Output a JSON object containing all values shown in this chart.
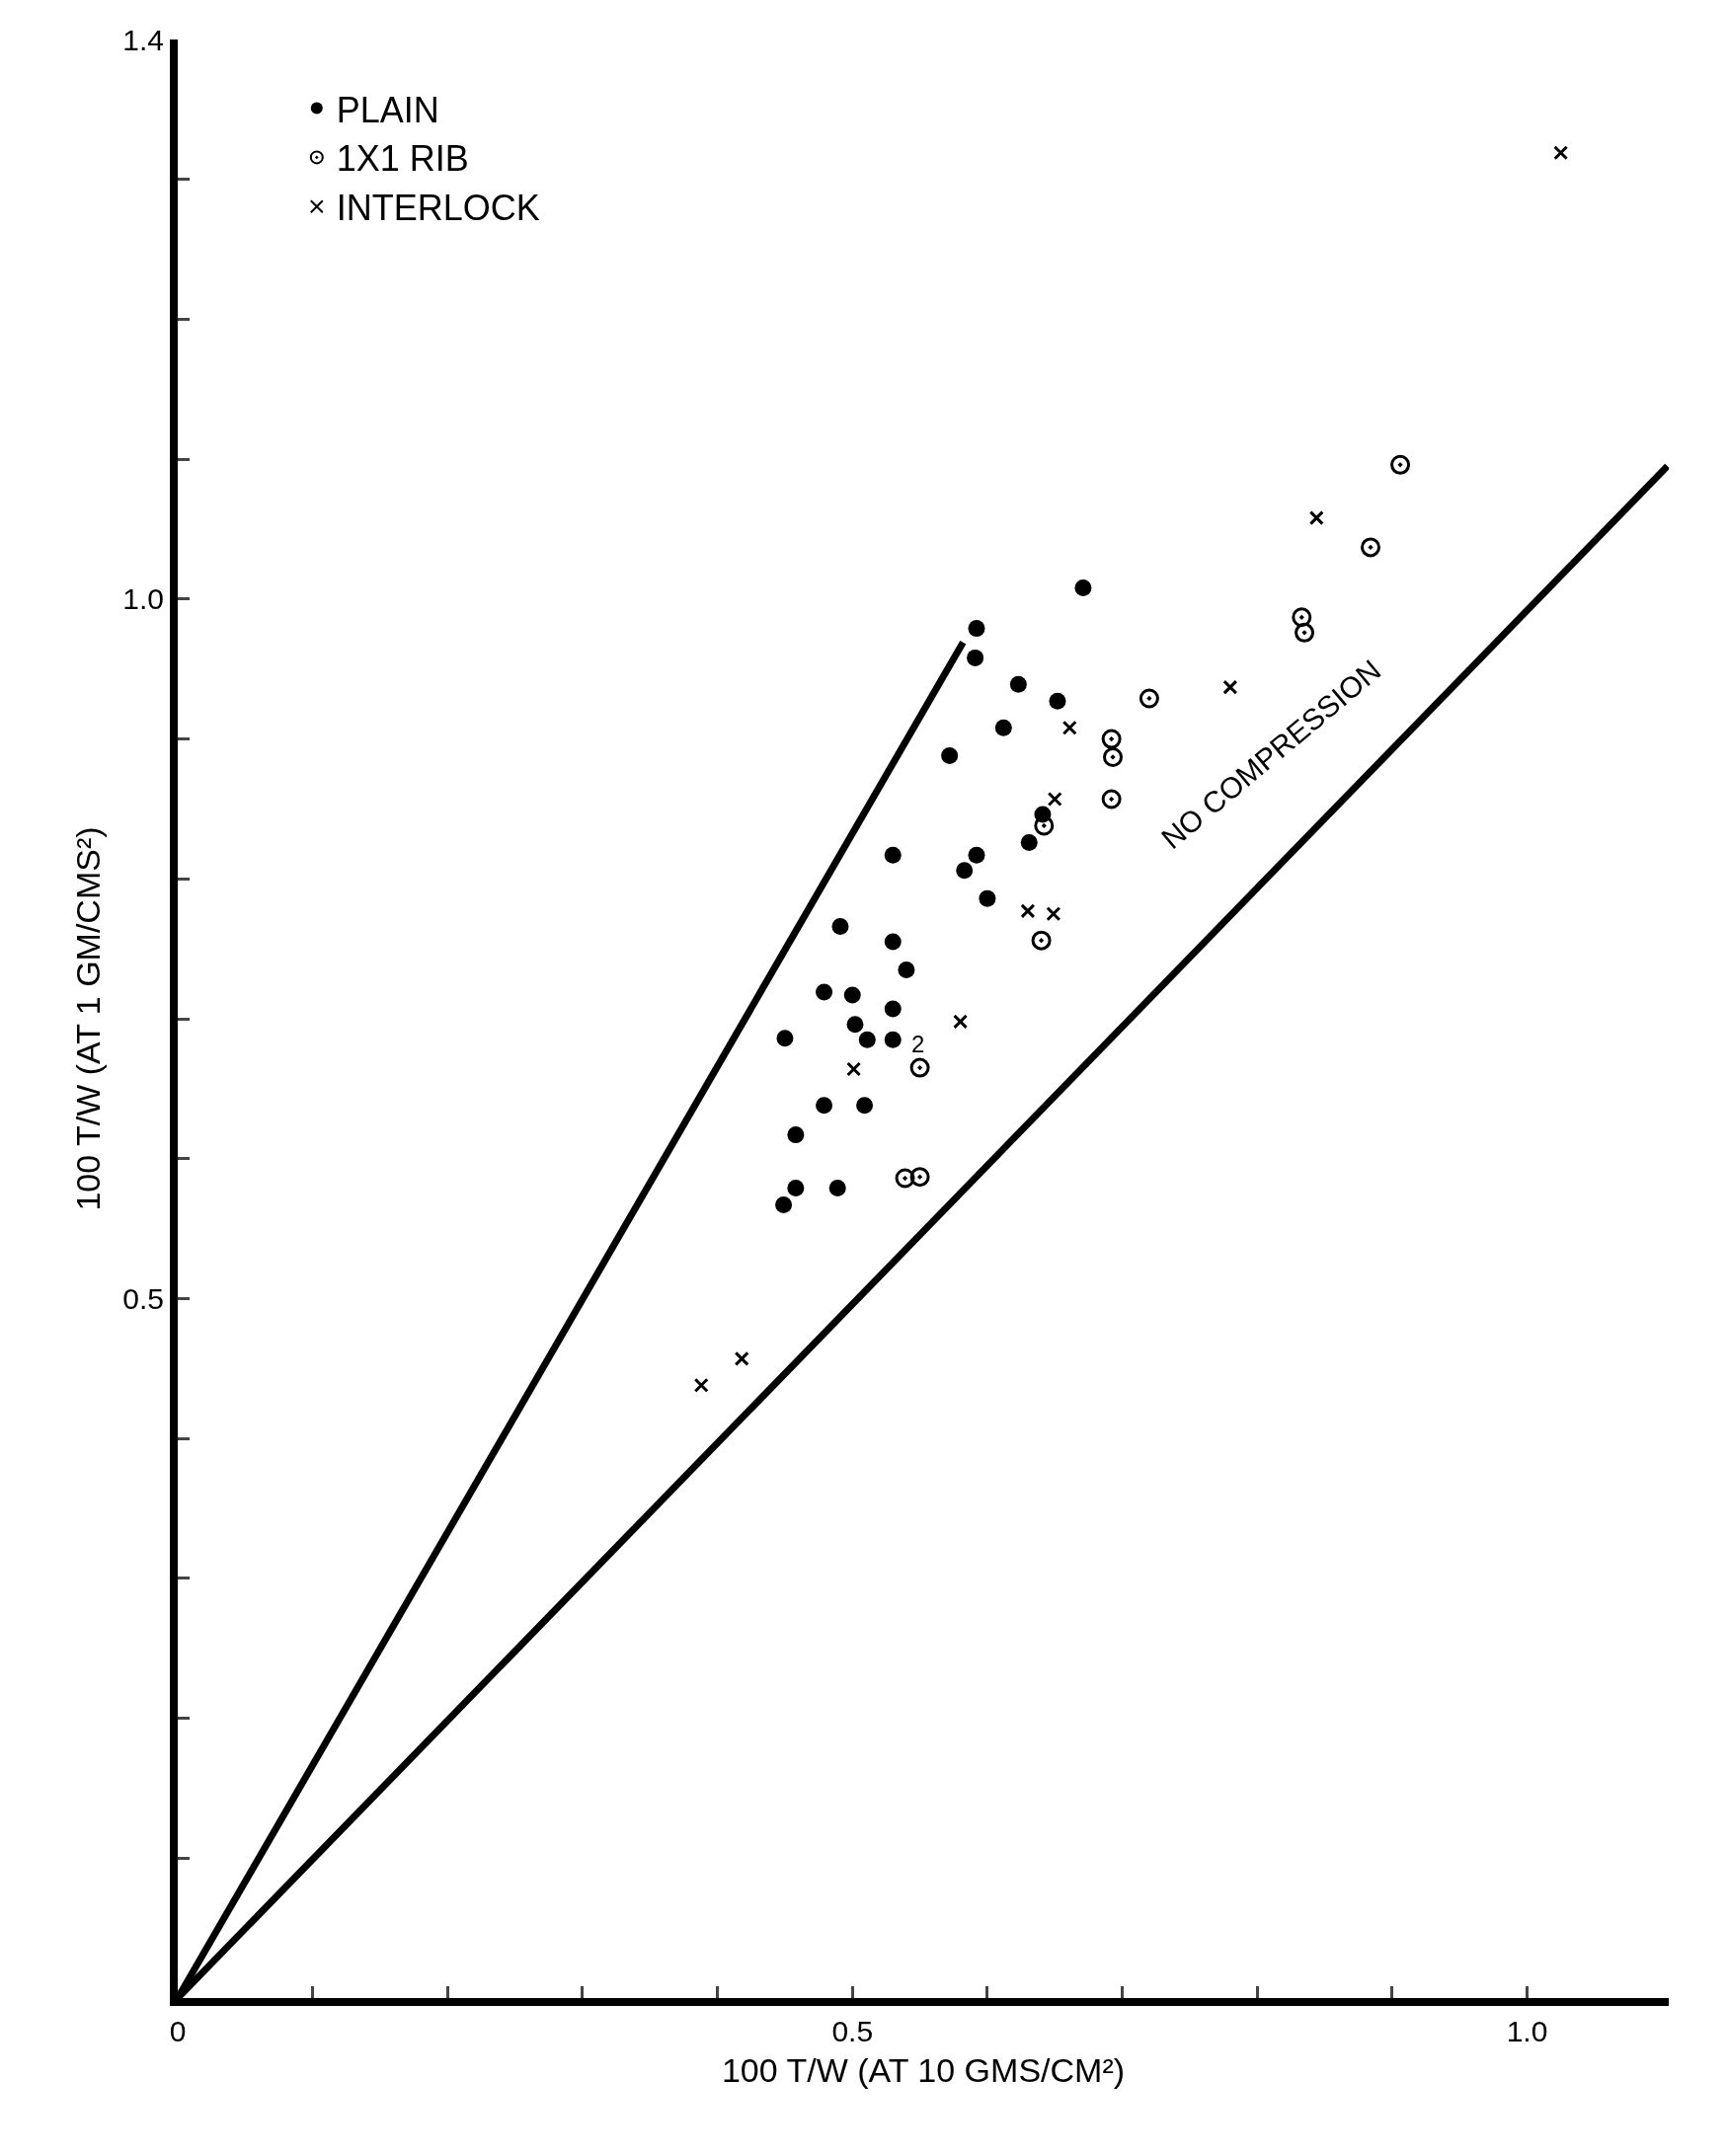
{
  "chart_data": {
    "type": "scatter",
    "xlabel": "100 T/W (AT 10 GMS/CM²)",
    "ylabel": "100 T/W (AT 1 GM/CMS²)",
    "xlim": [
      0,
      1.105
    ],
    "ylim": [
      0,
      1.4
    ],
    "xticks": [
      {
        "value": 0,
        "label": "0"
      },
      {
        "value": 0.1,
        "label": null
      },
      {
        "value": 0.2,
        "label": null
      },
      {
        "value": 0.3,
        "label": null
      },
      {
        "value": 0.4,
        "label": null
      },
      0.5,
      {
        "value": 0.6,
        "label": null
      },
      {
        "value": 0.7,
        "label": null
      },
      {
        "value": 0.8,
        "label": null
      },
      {
        "value": 0.9,
        "label": null
      },
      {
        "value": 1.0,
        "label": "1.0"
      }
    ],
    "yticks": [
      {
        "value": 0.1,
        "label": null
      },
      {
        "value": 0.2,
        "label": null
      },
      {
        "value": 0.3,
        "label": null
      },
      {
        "value": 0.4,
        "label": null
      },
      0.5,
      {
        "value": 0.6,
        "label": null
      },
      {
        "value": 0.7,
        "label": null
      },
      {
        "value": 0.8,
        "label": null
      },
      {
        "value": 0.9,
        "label": null
      },
      {
        "value": 1.0,
        "label": "1.0"
      },
      {
        "value": 1.1,
        "label": null
      },
      {
        "value": 1.2,
        "label": null
      },
      {
        "value": 1.3,
        "label": null
      },
      1.4
    ],
    "legend": "top left",
    "series": [
      {
        "name": "PLAIN",
        "color": "#000000",
        "marker": "circle",
        "x": [
          0.671,
          0.592,
          0.591,
          0.623,
          0.652,
          0.612,
          0.572,
          0.641,
          0.631,
          0.53,
          0.592,
          0.583,
          0.6,
          0.491,
          0.53,
          0.54,
          0.479,
          0.5,
          0.53,
          0.502,
          0.45,
          0.511,
          0.53,
          0.479,
          0.509,
          0.458,
          0.458,
          0.489,
          0.449
        ],
        "values": [
          1.008,
          0.979,
          0.958,
          0.939,
          0.927,
          0.908,
          0.888,
          0.846,
          0.826,
          0.817,
          0.817,
          0.806,
          0.786,
          0.766,
          0.755,
          0.735,
          0.719,
          0.717,
          0.707,
          0.696,
          0.686,
          0.685,
          0.685,
          0.638,
          0.638,
          0.617,
          0.579,
          0.579,
          0.567
        ]
      },
      {
        "name": "1X1 RIB",
        "color": "#000000",
        "marker": "circle-dot",
        "x": [
          0.906,
          0.884,
          0.833,
          0.835,
          0.72,
          0.692,
          0.693,
          0.692,
          0.642,
          0.64,
          0.55,
          0.539,
          0.55
        ],
        "values": [
          1.096,
          1.037,
          0.987,
          0.976,
          0.929,
          0.9,
          0.887,
          0.857,
          0.838,
          0.756,
          0.665,
          0.586,
          0.587
        ]
      },
      {
        "name": "INTERLOCK",
        "color": "#000000",
        "marker": "cross",
        "x": [
          1.025,
          0.844,
          0.78,
          0.661,
          0.65,
          0.63,
          0.649,
          0.58,
          0.501,
          0.418,
          0.388
        ],
        "values": [
          1.319,
          1.058,
          0.937,
          0.908,
          0.857,
          0.777,
          0.775,
          0.698,
          0.664,
          0.457,
          0.438
        ]
      },
      {
        "type": "line",
        "color": "#000000",
        "x": [
          0,
          0.582
        ],
        "values": [
          0,
          0.969
        ]
      },
      {
        "type": "line",
        "color": "#000000",
        "x": [
          0,
          1.104
        ],
        "values": [
          0,
          1.095
        ]
      }
    ],
    "annotations": [
      {
        "text": "NO COMPRESSION",
        "x": 0.85,
        "y": 0.843
      },
      {
        "text": "2",
        "x": 0.55,
        "y": 0.665
      }
    ]
  }
}
